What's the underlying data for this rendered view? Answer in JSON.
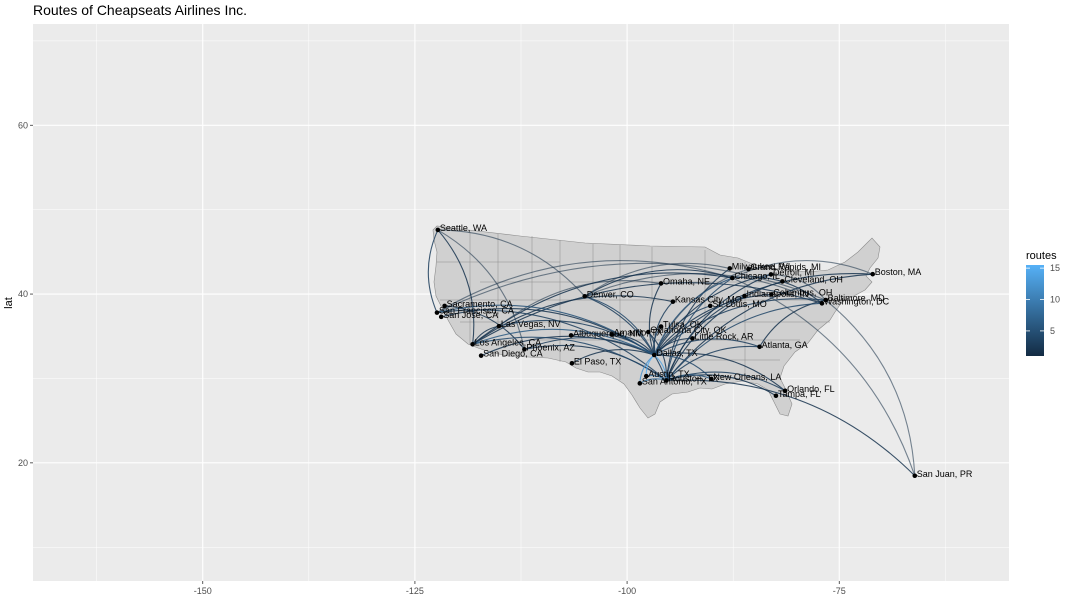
{
  "chart_data": {
    "type": "map",
    "title": "Routes of Cheapseats Airlines Inc.",
    "xlabel": "",
    "ylabel": "lat",
    "xlim": [
      -170,
      -55
    ],
    "ylim": [
      6,
      72
    ],
    "x_ticks": [
      -150,
      -125,
      -100,
      -75
    ],
    "y_ticks": [
      20,
      40,
      60
    ],
    "legend": {
      "title": "routes",
      "ticks": [
        5,
        10,
        15
      ],
      "range": [
        1,
        15.5
      ],
      "low_color": "#132b43",
      "high_color": "#56b1f7",
      "position": "right"
    },
    "panel_background": "#ebebeb",
    "land_color": "#d0d0d0",
    "cities": [
      {
        "name": "Seattle, WA",
        "lon": -122.3,
        "lat": 47.6
      },
      {
        "name": "Sacramento, CA",
        "lon": -121.5,
        "lat": 38.6
      },
      {
        "name": "San Francisco, CA",
        "lon": -122.4,
        "lat": 37.8
      },
      {
        "name": "San Jose, CA",
        "lon": -121.9,
        "lat": 37.3
      },
      {
        "name": "Los Angeles, CA",
        "lon": -118.2,
        "lat": 34.05
      },
      {
        "name": "San Diego, CA",
        "lon": -117.2,
        "lat": 32.7
      },
      {
        "name": "Las Vegas, NV",
        "lon": -115.1,
        "lat": 36.2
      },
      {
        "name": "Phoenix, AZ",
        "lon": -112.1,
        "lat": 33.45
      },
      {
        "name": "Albuquerque, NM",
        "lon": -106.6,
        "lat": 35.1
      },
      {
        "name": "El Paso, TX",
        "lon": -106.5,
        "lat": 31.8
      },
      {
        "name": "Denver, CO",
        "lon": -104.99,
        "lat": 39.74
      },
      {
        "name": "Amarillo, TX",
        "lon": -101.8,
        "lat": 35.2
      },
      {
        "name": "Omaha, NE",
        "lon": -96,
        "lat": 41.26
      },
      {
        "name": "Kansas City, MO",
        "lon": -94.6,
        "lat": 39.1
      },
      {
        "name": "Tulsa, OK",
        "lon": -96,
        "lat": 36.15
      },
      {
        "name": "Oklahoma City, OK",
        "lon": -97.5,
        "lat": 35.5
      },
      {
        "name": "Dallas, TX",
        "lon": -96.8,
        "lat": 32.78
      },
      {
        "name": "Austin, TX",
        "lon": -97.74,
        "lat": 30.27
      },
      {
        "name": "San Antonio, TX",
        "lon": -98.5,
        "lat": 29.42
      },
      {
        "name": "Houston, TX",
        "lon": -95.37,
        "lat": 29.76
      },
      {
        "name": "Little Rock, AR",
        "lon": -92.3,
        "lat": 34.75
      },
      {
        "name": "New Orleans, LA",
        "lon": -90.07,
        "lat": 29.95
      },
      {
        "name": "St. Louis, MO",
        "lon": -90.2,
        "lat": 38.6
      },
      {
        "name": "Chicago, IL",
        "lon": -87.6,
        "lat": 41.9
      },
      {
        "name": "Milwaukee, WI",
        "lon": -87.9,
        "lat": 43.04
      },
      {
        "name": "Grand Rapids, MI",
        "lon": -85.7,
        "lat": 42.96
      },
      {
        "name": "Detroit, MI",
        "lon": -83.05,
        "lat": 42.33
      },
      {
        "name": "Indianapolis, IN",
        "lon": -86.16,
        "lat": 39.77
      },
      {
        "name": "Columbus, OH",
        "lon": -83,
        "lat": 39.96
      },
      {
        "name": "Cleveland, OH",
        "lon": -81.7,
        "lat": 41.5
      },
      {
        "name": "Atlanta, GA",
        "lon": -84.39,
        "lat": 33.75
      },
      {
        "name": "Orlando, FL",
        "lon": -81.38,
        "lat": 28.54
      },
      {
        "name": "Tampa, FL",
        "lon": -82.46,
        "lat": 27.95
      },
      {
        "name": "Baltimore, MD",
        "lon": -76.6,
        "lat": 39.29
      },
      {
        "name": "Washington, DC",
        "lon": -77.04,
        "lat": 38.9
      },
      {
        "name": "Boston, MA",
        "lon": -71.06,
        "lat": 42.36
      },
      {
        "name": "San Juan, PR",
        "lon": -66.1,
        "lat": 18.47
      }
    ],
    "routes": [
      {
        "from": "Seattle, WA",
        "to": "San Francisco, CA",
        "count": 3
      },
      {
        "from": "Seattle, WA",
        "to": "Los Angeles, CA",
        "count": 2
      },
      {
        "from": "Seattle, WA",
        "to": "Denver, CO",
        "count": 1
      },
      {
        "from": "Seattle, WA",
        "to": "Phoenix, AZ",
        "count": 1
      },
      {
        "from": "San Francisco, CA",
        "to": "Dallas, TX",
        "count": 5
      },
      {
        "from": "San Francisco, CA",
        "to": "Houston, TX",
        "count": 3
      },
      {
        "from": "San Jose, CA",
        "to": "Dallas, TX",
        "count": 2
      },
      {
        "from": "San Francisco, CA",
        "to": "Chicago, IL",
        "count": 1
      },
      {
        "from": "Sacramento, CA",
        "to": "Phoenix, AZ",
        "count": 2
      },
      {
        "from": "Los Angeles, CA",
        "to": "Dallas, TX",
        "count": 6
      },
      {
        "from": "Los Angeles, CA",
        "to": "Houston, TX",
        "count": 4
      },
      {
        "from": "Los Angeles, CA",
        "to": "Las Vegas, NV",
        "count": 2
      },
      {
        "from": "San Diego, CA",
        "to": "Dallas, TX",
        "count": 2
      },
      {
        "from": "Las Vegas, NV",
        "to": "Dallas, TX",
        "count": 3
      },
      {
        "from": "Phoenix, AZ",
        "to": "Dallas, TX",
        "count": 3
      },
      {
        "from": "Phoenix, AZ",
        "to": "Houston, TX",
        "count": 2
      },
      {
        "from": "Albuquerque, NM",
        "to": "Dallas, TX",
        "count": 2
      },
      {
        "from": "El Paso, TX",
        "to": "Dallas, TX",
        "count": 2
      },
      {
        "from": "Denver, CO",
        "to": "Dallas, TX",
        "count": 4
      },
      {
        "from": "Denver, CO",
        "to": "Houston, TX",
        "count": 3
      },
      {
        "from": "Denver, CO",
        "to": "Washington, DC",
        "count": 1
      },
      {
        "from": "Amarillo, TX",
        "to": "Dallas, TX",
        "count": 2
      },
      {
        "from": "Omaha, NE",
        "to": "Dallas, TX",
        "count": 2
      },
      {
        "from": "Kansas City, MO",
        "to": "Dallas, TX",
        "count": 3
      },
      {
        "from": "Tulsa, OK",
        "to": "Dallas, TX",
        "count": 3
      },
      {
        "from": "Oklahoma City, OK",
        "to": "Dallas, TX",
        "count": 3
      },
      {
        "from": "Oklahoma City, OK",
        "to": "Houston, TX",
        "count": 2
      },
      {
        "from": "Austin, TX",
        "to": "Dallas, TX",
        "count": 15
      },
      {
        "from": "San Antonio, TX",
        "to": "Dallas, TX",
        "count": 12
      },
      {
        "from": "Houston, TX",
        "to": "Dallas, TX",
        "count": 14
      },
      {
        "from": "San Antonio, TX",
        "to": "Houston, TX",
        "count": 8
      },
      {
        "from": "Austin, TX",
        "to": "Houston, TX",
        "count": 9
      },
      {
        "from": "Little Rock, AR",
        "to": "Dallas, TX",
        "count": 2
      },
      {
        "from": "New Orleans, LA",
        "to": "Dallas, TX",
        "count": 4
      },
      {
        "from": "New Orleans, LA",
        "to": "Houston, TX",
        "count": 5
      },
      {
        "from": "St. Louis, MO",
        "to": "Dallas, TX",
        "count": 3
      },
      {
        "from": "Chicago, IL",
        "to": "Dallas, TX",
        "count": 5
      },
      {
        "from": "Chicago, IL",
        "to": "Houston, TX",
        "count": 4
      },
      {
        "from": "Chicago, IL",
        "to": "Denver, CO",
        "count": 2
      },
      {
        "from": "Milwaukee, WI",
        "to": "Houston, TX",
        "count": 2
      },
      {
        "from": "Grand Rapids, MI",
        "to": "Dallas, TX",
        "count": 1
      },
      {
        "from": "Detroit, MI",
        "to": "Dallas, TX",
        "count": 2
      },
      {
        "from": "Detroit, MI",
        "to": "Houston, TX",
        "count": 2
      },
      {
        "from": "Indianapolis, IN",
        "to": "Houston, TX",
        "count": 2
      },
      {
        "from": "Columbus, OH",
        "to": "Dallas, TX",
        "count": 2
      },
      {
        "from": "Cleveland, OH",
        "to": "Houston, TX",
        "count": 2
      },
      {
        "from": "Atlanta, GA",
        "to": "Dallas, TX",
        "count": 3
      },
      {
        "from": "Atlanta, GA",
        "to": "Houston, TX",
        "count": 3
      },
      {
        "from": "Orlando, FL",
        "to": "Dallas, TX",
        "count": 2
      },
      {
        "from": "Orlando, FL",
        "to": "Houston, TX",
        "count": 3
      },
      {
        "from": "Tampa, FL",
        "to": "Houston, TX",
        "count": 2
      },
      {
        "from": "Baltimore, MD",
        "to": "Dallas, TX",
        "count": 3
      },
      {
        "from": "Washington, DC",
        "to": "Houston, TX",
        "count": 4
      },
      {
        "from": "Washington, DC",
        "to": "Los Angeles, CA",
        "count": 2
      },
      {
        "from": "Baltimore, MD",
        "to": "San Francisco, CA",
        "count": 1
      },
      {
        "from": "Boston, MA",
        "to": "Dallas, TX",
        "count": 2
      },
      {
        "from": "Boston, MA",
        "to": "Houston, TX",
        "count": 2
      },
      {
        "from": "Boston, MA",
        "to": "Chicago, IL",
        "count": 1
      },
      {
        "from": "San Juan, PR",
        "to": "Houston, TX",
        "count": 2
      },
      {
        "from": "San Juan, PR",
        "to": "Baltimore, MD",
        "count": 1
      },
      {
        "from": "San Juan, PR",
        "to": "Chicago, IL",
        "count": 1
      },
      {
        "from": "Milwaukee, WI",
        "to": "Denver, CO",
        "count": 1
      },
      {
        "from": "Omaha, NE",
        "to": "Las Vegas, NV",
        "count": 1
      },
      {
        "from": "Kansas City, MO",
        "to": "Los Angeles, CA",
        "count": 2
      },
      {
        "from": "Chicago, IL",
        "to": "Los Angeles, CA",
        "count": 2
      },
      {
        "from": "Chicago, IL",
        "to": "Washington, DC",
        "count": 2
      },
      {
        "from": "Atlanta, GA",
        "to": "Baltimore, MD",
        "count": 2
      },
      {
        "from": "Detroit, MI",
        "to": "Baltimore, MD",
        "count": 1
      }
    ]
  }
}
